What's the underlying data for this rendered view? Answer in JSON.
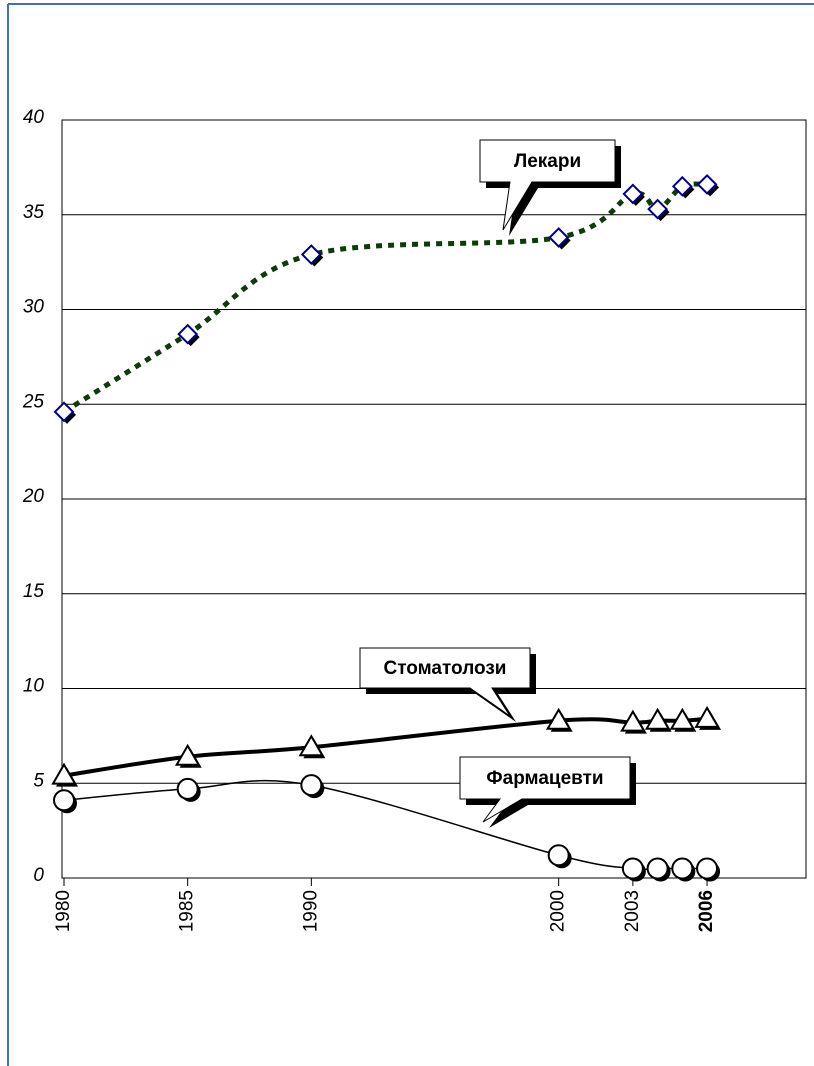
{
  "chart_data": {
    "type": "line",
    "x": [
      1980,
      1985,
      1990,
      2000,
      2003,
      2004,
      2005,
      2006
    ],
    "xlim": [
      1980,
      2010
    ],
    "xticks": [
      1980,
      1985,
      1990,
      2000,
      2003,
      2006
    ],
    "ylim": [
      0,
      40
    ],
    "yticks": [
      0,
      5,
      10,
      15,
      20,
      25,
      30,
      35,
      40
    ],
    "grid": true,
    "series": [
      {
        "name": "Лекари",
        "color": "#0f3a0a",
        "marker": "diamond",
        "marker_color": "#000080",
        "line_style": "dotted",
        "values": [
          24.6,
          28.7,
          32.9,
          33.8,
          36.1,
          35.3,
          36.5,
          36.6
        ]
      },
      {
        "name": "Стоматолози",
        "color": "#000000",
        "marker": "triangle",
        "marker_color": "#000000",
        "line_style": "thick",
        "values": [
          5.4,
          6.4,
          6.9,
          8.3,
          8.2,
          8.3,
          8.3,
          8.4
        ]
      },
      {
        "name": "Фармацевти",
        "color": "#000000",
        "marker": "circle",
        "marker_color": "#000000",
        "line_style": "thin",
        "values": [
          4.1,
          4.7,
          4.9,
          1.2,
          0.5,
          0.5,
          0.5,
          0.5
        ]
      }
    ]
  }
}
